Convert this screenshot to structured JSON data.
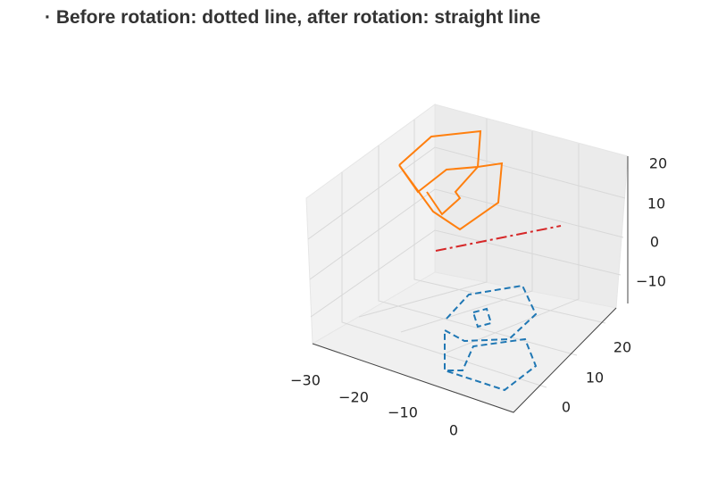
{
  "note": "· Before rotation: dotted line, after rotation: straight line",
  "figure": {
    "x_ticks": [
      "−30",
      "−20",
      "−10",
      "0"
    ],
    "y_ticks": [
      "20",
      "10",
      "0"
    ],
    "z_ticks": [
      "20",
      "10",
      "0",
      "−10"
    ]
  }
}
